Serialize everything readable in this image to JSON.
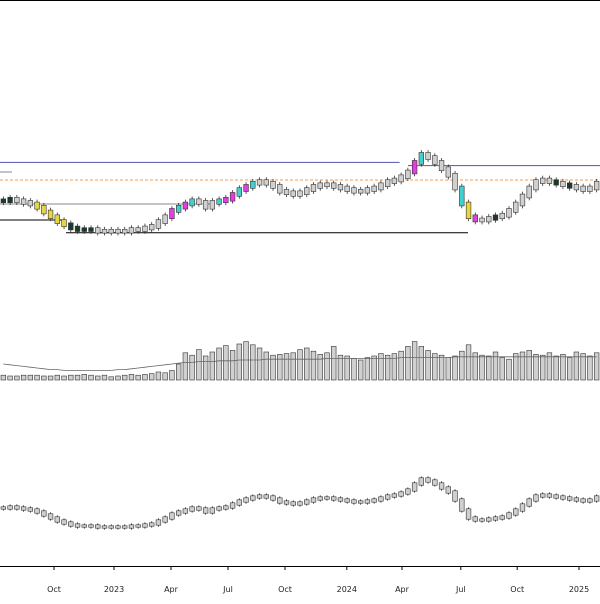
{
  "chart_data": {
    "type": "candlestick",
    "title": "",
    "panels": [
      {
        "name": "price-panel",
        "kind": "candles",
        "ylim": [
          0,
          100
        ],
        "values": [
          62,
          63,
          62,
          61,
          60,
          58,
          55,
          52,
          49,
          47,
          45,
          44,
          44,
          44,
          43,
          43,
          43,
          43,
          43,
          44,
          44,
          45,
          46,
          49,
          52,
          56,
          58,
          60,
          62,
          61,
          58,
          61,
          62,
          63,
          66,
          69,
          71,
          73,
          74,
          73,
          71,
          68,
          67,
          66,
          67,
          69,
          71,
          72,
          72,
          71,
          70,
          69,
          68,
          68,
          69,
          70,
          72,
          74,
          75,
          77,
          80,
          86,
          91,
          89,
          86,
          82,
          78,
          70,
          60,
          52,
          50,
          50,
          51,
          52,
          53,
          56,
          60,
          65,
          70,
          74,
          75,
          74,
          73,
          72,
          71,
          70,
          69,
          70,
          73
        ],
        "candle_colors": [
          "black",
          "black",
          "gray",
          "gray",
          "gray",
          "yellow",
          "yellow",
          "yellow",
          "yellow",
          "yellow",
          "black",
          "black",
          "black",
          "black",
          "gray",
          "gray",
          "gray",
          "gray",
          "gray",
          "gray",
          "gray",
          "gray",
          "gray",
          "gray",
          "gray",
          "magenta",
          "cyan",
          "magenta",
          "cyan",
          "gray",
          "gray",
          "gray",
          "cyan",
          "magenta",
          "magenta",
          "cyan",
          "magenta",
          "cyan",
          "gray",
          "gray",
          "gray",
          "gray",
          "gray",
          "gray",
          "gray",
          "gray",
          "gray",
          "gray",
          "gray",
          "gray",
          "gray",
          "gray",
          "gray",
          "gray",
          "gray",
          "gray",
          "gray",
          "gray",
          "gray",
          "gray",
          "gray",
          "magenta",
          "cyan",
          "gray",
          "gray",
          "gray",
          "gray",
          "gray",
          "cyan",
          "yellow",
          "magenta",
          "gray",
          "gray",
          "black",
          "gray",
          "gray",
          "gray",
          "gray",
          "gray",
          "gray",
          "gray",
          "gray",
          "black",
          "gray",
          "black",
          "gray",
          "gray",
          "gray",
          "gray"
        ],
        "horizontal_levels": [
          {
            "value": 86,
            "color": "#5555aa",
            "from": 0,
            "to": 0.666
          },
          {
            "value": 80,
            "color": "#888888",
            "from": 0,
            "to": 0.02
          },
          {
            "value": 75,
            "color": "#ff9944",
            "from": 0,
            "to": 1,
            "dashed": true
          },
          {
            "value": 60,
            "color": "#888888",
            "from": 0,
            "to": 0.35
          },
          {
            "value": 50,
            "color": "#000000",
            "from": 0,
            "to": 0.11
          },
          {
            "value": 42,
            "color": "#000000",
            "from": 0.11,
            "to": 0.78
          },
          {
            "value": 84,
            "color": "#5555aa",
            "from": 0.68,
            "to": 1
          }
        ]
      },
      {
        "name": "volume-panel",
        "kind": "volume",
        "ylim": [
          0,
          100
        ],
        "values": [
          6,
          5,
          5,
          6,
          6,
          6,
          5,
          5,
          6,
          5,
          6,
          6,
          7,
          6,
          5,
          6,
          4,
          5,
          6,
          7,
          6,
          7,
          8,
          10,
          9,
          12,
          20,
          34,
          31,
          38,
          30,
          35,
          40,
          43,
          37,
          45,
          48,
          44,
          40,
          35,
          31,
          32,
          33,
          34,
          38,
          40,
          36,
          32,
          34,
          42,
          31,
          30,
          27,
          25,
          28,
          30,
          33,
          31,
          33,
          36,
          42,
          48,
          42,
          37,
          33,
          31,
          28,
          30,
          36,
          44,
          34,
          31,
          30,
          35,
          28,
          26,
          33,
          35,
          37,
          32,
          31,
          34,
          30,
          32,
          28,
          35,
          33,
          30,
          34
        ],
        "average_line": [
          20,
          19,
          18,
          17,
          16,
          15,
          14,
          13,
          13,
          12,
          12,
          12,
          12,
          12,
          12,
          12,
          12,
          13,
          13,
          14,
          15,
          16,
          17,
          18,
          19,
          20,
          21,
          22,
          22,
          23,
          23,
          23,
          24,
          24,
          24,
          25,
          25,
          25,
          25,
          26,
          26,
          26,
          26,
          26,
          26,
          26,
          26,
          26,
          27,
          27,
          27,
          27,
          27,
          27,
          27,
          27,
          27,
          27,
          27,
          28,
          28,
          28,
          28,
          28,
          28,
          28,
          28,
          29,
          29,
          29,
          29,
          29,
          29,
          29,
          29,
          29,
          29,
          29,
          29,
          29,
          29,
          29,
          29,
          29,
          29,
          29,
          29,
          29,
          29
        ]
      },
      {
        "name": "lower-price-panel",
        "kind": "candles",
        "ylim": [
          0,
          100
        ],
        "values": [
          62,
          63,
          62,
          61,
          60,
          58,
          55,
          52,
          49,
          47,
          45,
          44,
          44,
          44,
          43,
          43,
          43,
          43,
          43,
          44,
          44,
          45,
          46,
          49,
          52,
          56,
          58,
          60,
          62,
          61,
          58,
          61,
          62,
          63,
          66,
          69,
          71,
          73,
          74,
          73,
          71,
          68,
          67,
          66,
          67,
          69,
          71,
          72,
          72,
          71,
          70,
          69,
          68,
          68,
          69,
          70,
          72,
          74,
          75,
          77,
          80,
          86,
          91,
          89,
          86,
          82,
          78,
          70,
          60,
          52,
          50,
          50,
          51,
          52,
          53,
          56,
          60,
          65,
          70,
          74,
          75,
          74,
          73,
          72,
          71,
          70,
          69,
          70,
          73
        ]
      }
    ],
    "x_tick_labels": [
      "Oct",
      "2023",
      "Apr",
      "Jul",
      "Oct",
      "2024",
      "Apr",
      "Jul",
      "Oct",
      "2025"
    ],
    "x_tick_positions": [
      0.09,
      0.19,
      0.285,
      0.38,
      0.475,
      0.578,
      0.67,
      0.768,
      0.862,
      0.965
    ],
    "grid": false,
    "legend": "none"
  }
}
